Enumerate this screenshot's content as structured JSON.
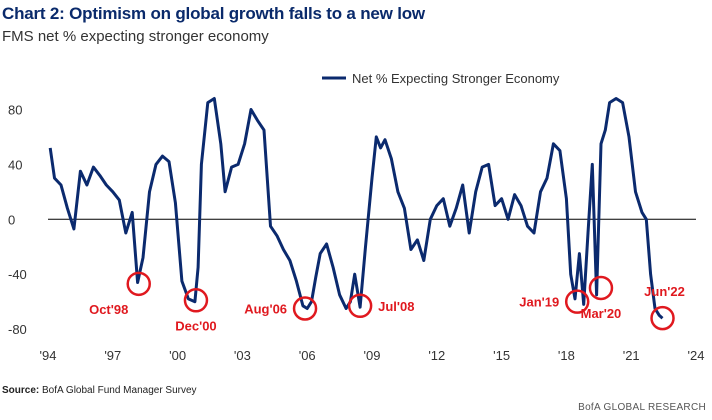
{
  "header": {
    "title": "Chart 2: Optimism on global growth falls to a new low",
    "subtitle": "FMS net % expecting stronger economy"
  },
  "footer": {
    "source_label": "Source:",
    "source_text": "BofA Global Fund Manager Survey",
    "brand": "BofA GLOBAL RESEARCH"
  },
  "colors": {
    "line": "#0b2a6e",
    "annotation": "#e0191f",
    "zero_line": "#000000",
    "tick_text": "#333333"
  },
  "chart_data": {
    "type": "line",
    "title": "",
    "xlabel": "",
    "ylabel": "",
    "xlim": [
      1994,
      2024
    ],
    "ylim": [
      -85,
      100
    ],
    "y_ticks": [
      -80,
      -40,
      0,
      40,
      80
    ],
    "x_ticks": [
      1994,
      1997,
      2000,
      2003,
      2006,
      2009,
      2012,
      2015,
      2018,
      2021,
      2024
    ],
    "x_tick_labels": [
      "'94",
      "'97",
      "'00",
      "'03",
      "'06",
      "'09",
      "'12",
      "'15",
      "'18",
      "'21",
      "'24"
    ],
    "y_tick_labels": [
      "-80",
      "-40",
      "0",
      "40",
      "80"
    ],
    "zero_line": true,
    "grid": false,
    "legend_position": "top-right",
    "series": [
      {
        "name": "Net % Expecting Stronger Economy",
        "x": [
          1994.1,
          1994.3,
          1994.6,
          1994.9,
          1995.2,
          1995.5,
          1995.8,
          1996.1,
          1996.4,
          1996.7,
          1997.0,
          1997.3,
          1997.6,
          1997.9,
          1998.15,
          1998.4,
          1998.7,
          1999.0,
          1999.3,
          1999.6,
          1999.9,
          2000.2,
          2000.5,
          2000.8,
          2000.95,
          2001.1,
          2001.4,
          2001.7,
          2002.0,
          2002.2,
          2002.5,
          2002.8,
          2003.1,
          2003.4,
          2003.7,
          2004.0,
          2004.3,
          2004.6,
          2004.9,
          2005.2,
          2005.5,
          2005.8,
          2006.0,
          2006.2,
          2006.4,
          2006.6,
          2006.9,
          2007.2,
          2007.5,
          2007.8,
          2008.0,
          2008.2,
          2008.45,
          2008.7,
          2009.0,
          2009.2,
          2009.4,
          2009.6,
          2009.9,
          2010.2,
          2010.5,
          2010.8,
          2011.1,
          2011.4,
          2011.7,
          2012.0,
          2012.3,
          2012.6,
          2012.9,
          2013.2,
          2013.5,
          2013.8,
          2014.1,
          2014.4,
          2014.7,
          2015.0,
          2015.3,
          2015.6,
          2015.9,
          2016.2,
          2016.5,
          2016.8,
          2017.1,
          2017.4,
          2017.7,
          2018.0,
          2018.2,
          2018.4,
          2018.6,
          2018.8,
          2019.0,
          2019.2,
          2019.4,
          2019.6,
          2019.8,
          2020.0,
          2020.3,
          2020.6,
          2020.9,
          2021.2,
          2021.5,
          2021.7,
          2021.9,
          2022.1,
          2022.3,
          2022.45
        ],
        "values": [
          52,
          30,
          25,
          8,
          -7,
          35,
          25,
          38,
          32,
          25,
          20,
          14,
          -10,
          5,
          -46,
          -28,
          20,
          40,
          46,
          42,
          12,
          -45,
          -58,
          -60,
          -35,
          40,
          85,
          88,
          55,
          20,
          38,
          40,
          55,
          80,
          72,
          65,
          -5,
          -12,
          -22,
          -30,
          -45,
          -63,
          -65,
          -60,
          -42,
          -25,
          -18,
          -35,
          -55,
          -65,
          -60,
          -40,
          -64,
          -20,
          30,
          60,
          52,
          58,
          44,
          20,
          8,
          -22,
          -15,
          -30,
          0,
          10,
          15,
          -5,
          8,
          25,
          -10,
          20,
          38,
          40,
          10,
          15,
          0,
          18,
          10,
          -5,
          -10,
          20,
          30,
          55,
          50,
          15,
          -40,
          -58,
          -25,
          -62,
          -10,
          40,
          -55,
          55,
          65,
          85,
          88,
          85,
          60,
          20,
          5,
          0,
          -40,
          -65,
          -70,
          -72
        ]
      }
    ],
    "annotations": [
      {
        "label": "Oct'98",
        "x": 1998.2,
        "y": -47,
        "label_side": "below-left"
      },
      {
        "label": "Dec'00",
        "x": 2000.85,
        "y": -59,
        "label_side": "below"
      },
      {
        "label": "Aug'06",
        "x": 2005.9,
        "y": -65,
        "label_side": "left"
      },
      {
        "label": "Jul'08",
        "x": 2008.45,
        "y": -63,
        "label_side": "right"
      },
      {
        "label": "Jan'19",
        "x": 2018.5,
        "y": -60,
        "label_side": "left"
      },
      {
        "label": "Mar'20",
        "x": 2019.6,
        "y": -50,
        "label_side": "below"
      },
      {
        "label": "Jun'22",
        "x": 2022.45,
        "y": -72,
        "label_side": "above-right"
      }
    ]
  }
}
